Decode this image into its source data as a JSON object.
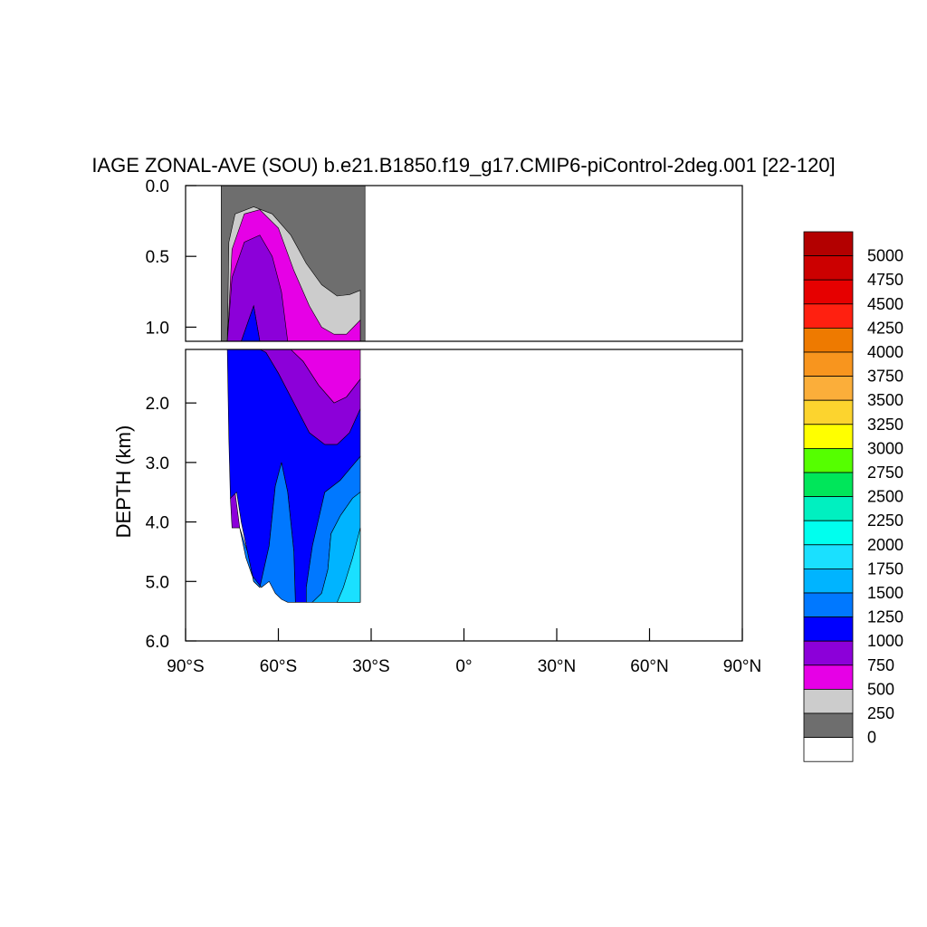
{
  "chart_data": {
    "type": "contour",
    "title": "IAGE ZONAL-AVE (SOU) b.e21.B1850.f19_g17.CMIP6-piControl-2deg.001 [22-120]",
    "ylabel": "DEPTH (km)",
    "xlabel": "",
    "x_ticks": [
      {
        "value": -90,
        "label": "90°S"
      },
      {
        "value": -60,
        "label": "60°S"
      },
      {
        "value": -30,
        "label": "30°S"
      },
      {
        "value": 0,
        "label": "0°"
      },
      {
        "value": 30,
        "label": "30°N"
      },
      {
        "value": 60,
        "label": "60°N"
      },
      {
        "value": 90,
        "label": "90°N"
      }
    ],
    "y_ticks_upper": [
      {
        "value": 0.0,
        "label": "0.0"
      },
      {
        "value": 0.5,
        "label": "0.5"
      },
      {
        "value": 1.0,
        "label": "1.0"
      }
    ],
    "y_ticks_lower": [
      {
        "value": 2.0,
        "label": "2.0"
      },
      {
        "value": 3.0,
        "label": "3.0"
      },
      {
        "value": 4.0,
        "label": "4.0"
      },
      {
        "value": 5.0,
        "label": "5.0"
      },
      {
        "value": 6.0,
        "label": "6.0"
      }
    ],
    "xlim": [
      -90,
      90
    ],
    "ylim_upper": [
      0,
      1.1
    ],
    "ylim_lower": [
      1.1,
      6.0
    ],
    "colorbar": {
      "labels": [
        "5000",
        "4750",
        "4500",
        "4250",
        "4000",
        "3750",
        "3500",
        "3250",
        "3000",
        "2750",
        "2500",
        "2250",
        "2000",
        "1750",
        "1500",
        "1250",
        "1000",
        "750",
        "500",
        "250",
        "0"
      ],
      "colors": [
        "#b30000",
        "#cc0000",
        "#e60000",
        "#ff2010",
        "#ee7a00",
        "#f8951e",
        "#fbae3a",
        "#fcd42e",
        "#ffff00",
        "#55ff00",
        "#00e65a",
        "#00f0c0",
        "#00ffee",
        "#1ae0ff",
        "#00b4ff",
        "#0078ff",
        "#0000ff",
        "#8c00d9",
        "#e600e6",
        "#cccccc",
        "#6e6e6e",
        "#ffffff"
      ]
    },
    "levels": [
      {
        "name": "0-250",
        "color": "#6e6e6e",
        "poly": [
          [
            -78.5,
            0
          ],
          [
            -32,
            0
          ],
          [
            -32,
            1.1
          ],
          [
            -78.5,
            1.1
          ]
        ]
      },
      {
        "name": "250-500",
        "color": "#cccccc",
        "poly": [
          [
            -76.5,
            1.1
          ],
          [
            -76,
            0.4
          ],
          [
            -74,
            0.2
          ],
          [
            -68,
            0.15
          ],
          [
            -62,
            0.2
          ],
          [
            -56,
            0.35
          ],
          [
            -51,
            0.55
          ],
          [
            -46,
            0.7
          ],
          [
            -41,
            0.78
          ],
          [
            -37,
            0.77
          ],
          [
            -33.5,
            0.74
          ],
          [
            -33.5,
            1.1
          ]
        ]
      },
      {
        "name": "500-750",
        "color": "#e600e6",
        "poly": [
          [
            -76.5,
            1.1
          ],
          [
            -75,
            0.45
          ],
          [
            -71,
            0.2
          ],
          [
            -66,
            0.17
          ],
          [
            -60,
            0.3
          ],
          [
            -55,
            0.6
          ],
          [
            -50,
            0.85
          ],
          [
            -46,
            1.0
          ],
          [
            -42,
            1.05
          ],
          [
            -38,
            1.05
          ],
          [
            -33.5,
            0.95
          ],
          [
            -33.5,
            1.6
          ],
          [
            -38,
            1.9
          ],
          [
            -42,
            2.0
          ],
          [
            -47,
            1.7
          ],
          [
            -52,
            1.3
          ],
          [
            -56,
            1.13
          ],
          [
            -60,
            1.1
          ]
        ]
      },
      {
        "name": "750-1000",
        "color": "#8c00d9",
        "poly": [
          [
            -76.5,
            1.1
          ],
          [
            -75,
            0.65
          ],
          [
            -71,
            0.4
          ],
          [
            -66,
            0.35
          ],
          [
            -62,
            0.5
          ],
          [
            -59,
            0.75
          ],
          [
            -57,
            1.1
          ],
          [
            -56,
            1.1
          ],
          [
            -52,
            1.3
          ],
          [
            -47,
            1.7
          ],
          [
            -42,
            2.0
          ],
          [
            -38,
            1.9
          ],
          [
            -33.5,
            1.6
          ],
          [
            -33.5,
            2.1
          ],
          [
            -37,
            2.5
          ],
          [
            -41,
            2.7
          ],
          [
            -45,
            2.7
          ],
          [
            -50,
            2.5
          ],
          [
            -55,
            2.0
          ],
          [
            -60,
            1.5
          ],
          [
            -64,
            1.15
          ],
          [
            -66,
            1.1
          ],
          [
            -68,
            0.85
          ],
          [
            -72,
            1.1
          ]
        ]
      },
      {
        "name": "750-1000-deep",
        "color": "#8c00d9",
        "poly": [
          [
            -75.5,
            3.6
          ],
          [
            -74,
            3.5
          ],
          [
            -72.5,
            4.1
          ],
          [
            -75,
            4.1
          ]
        ]
      },
      {
        "name": "1000-1250",
        "color": "#0000ff",
        "poly": [
          [
            -76.5,
            1.1
          ],
          [
            -72,
            1.1
          ],
          [
            -68,
            0.85
          ],
          [
            -66,
            1.1
          ],
          [
            -64,
            1.15
          ],
          [
            -60,
            1.5
          ],
          [
            -55,
            2.0
          ],
          [
            -50,
            2.5
          ],
          [
            -45,
            2.7
          ],
          [
            -41,
            2.7
          ],
          [
            -37,
            2.5
          ],
          [
            -33.5,
            2.1
          ],
          [
            -33.5,
            2.9
          ],
          [
            -40,
            3.3
          ],
          [
            -45,
            3.5
          ],
          [
            -49,
            4.4
          ],
          [
            -51,
            5.1
          ],
          [
            -51,
            5.35
          ],
          [
            -54.5,
            5.35
          ],
          [
            -55,
            4.5
          ],
          [
            -57,
            3.5
          ],
          [
            -59,
            3.0
          ],
          [
            -61,
            3.4
          ],
          [
            -63,
            4.4
          ],
          [
            -66,
            5.1
          ],
          [
            -68,
            5.0
          ],
          [
            -70,
            4.5
          ],
          [
            -72,
            4.0
          ],
          [
            -73.5,
            3.5
          ],
          [
            -75.5,
            3.6
          ],
          [
            -76,
            2.6
          ]
        ]
      },
      {
        "name": "1250-1500",
        "color": "#0078ff",
        "poly": [
          [
            -33.5,
            2.9
          ],
          [
            -40,
            3.3
          ],
          [
            -45,
            3.5
          ],
          [
            -49,
            4.4
          ],
          [
            -51,
            5.1
          ],
          [
            -51,
            5.35
          ],
          [
            -49,
            5.35
          ],
          [
            -46,
            5.2
          ],
          [
            -44,
            4.8
          ],
          [
            -43,
            4.2
          ],
          [
            -40,
            3.9
          ],
          [
            -36,
            3.6
          ],
          [
            -33.5,
            3.5
          ]
        ]
      },
      {
        "name": "1250-1500-west",
        "color": "#0078ff",
        "poly": [
          [
            -72.5,
            4.1
          ],
          [
            -70,
            4.5
          ],
          [
            -68,
            5.0
          ],
          [
            -66,
            5.1
          ],
          [
            -63,
            4.4
          ],
          [
            -61,
            3.4
          ],
          [
            -59,
            3.0
          ],
          [
            -57,
            3.5
          ],
          [
            -55,
            4.5
          ],
          [
            -54.5,
            5.35
          ],
          [
            -57,
            5.35
          ],
          [
            -59,
            5.3
          ],
          [
            -61,
            5.2
          ],
          [
            -63,
            5.0
          ],
          [
            -65.5,
            5.1
          ],
          [
            -68.5,
            4.9
          ],
          [
            -70.5,
            4.6
          ]
        ]
      },
      {
        "name": "1500-1750",
        "color": "#00b4ff",
        "poly": [
          [
            -33.5,
            3.5
          ],
          [
            -36,
            3.6
          ],
          [
            -40,
            3.9
          ],
          [
            -43,
            4.2
          ],
          [
            -44,
            4.8
          ],
          [
            -46,
            5.2
          ],
          [
            -49,
            5.35
          ],
          [
            -33.5,
            5.35
          ]
        ]
      },
      {
        "name": "1750-2000",
        "color": "#1ae0ff",
        "poly": [
          [
            -33.5,
            4.1
          ],
          [
            -36,
            4.6
          ],
          [
            -39,
            5.1
          ],
          [
            -41,
            5.35
          ],
          [
            -33.5,
            5.35
          ]
        ]
      }
    ]
  }
}
